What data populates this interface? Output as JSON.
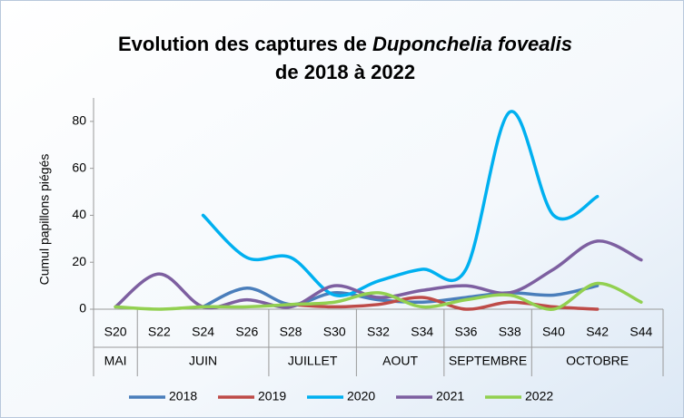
{
  "chart_data": {
    "type": "line",
    "title_parts": [
      "Evolution des captures de ",
      "Duponchelia  fovealis",
      "de 2018 à 2022"
    ],
    "y_label": "Cumul papillons piégés",
    "categories": [
      "S20",
      "S22",
      "S24",
      "S26",
      "S28",
      "S30",
      "S32",
      "S34",
      "S36",
      "S38",
      "S40",
      "S42",
      "S44"
    ],
    "month_categories": [
      "MAI",
      "JUIN",
      "JUIN",
      "JUIN",
      "JUILLET",
      "JUILLET",
      "AOUT",
      "AOUT",
      "SEPTEMBRE",
      "SEPTEMBRE",
      "OCTOBRE",
      "OCTOBRE",
      "OCTOBRE"
    ],
    "series": [
      {
        "name": "2018",
        "color": "#4a7ebb",
        "values": [
          null,
          null,
          1,
          9,
          2,
          7,
          4,
          3,
          5,
          7,
          6,
          10,
          null
        ]
      },
      {
        "name": "2019",
        "color": "#be4b48",
        "values": [
          null,
          null,
          null,
          null,
          2,
          1,
          2,
          5,
          0,
          3,
          1,
          0,
          null
        ]
      },
      {
        "name": "2020",
        "color": "#00b0f0",
        "values": [
          null,
          null,
          40,
          22,
          22,
          6,
          12,
          17,
          17,
          84,
          40,
          48,
          null
        ]
      },
      {
        "name": "2021",
        "color": "#7d5fa0",
        "values": [
          1,
          15,
          1,
          4,
          1,
          10,
          5,
          8,
          10,
          7,
          17,
          29,
          21
        ]
      },
      {
        "name": "2022",
        "color": "#92d050",
        "values": [
          1,
          0,
          1,
          1,
          2,
          3,
          7,
          1,
          4,
          6,
          0,
          11,
          3
        ]
      }
    ],
    "ylim": [
      0,
      90
    ],
    "yticks": [
      0,
      20,
      40,
      60,
      80
    ],
    "grid": false,
    "smooth": true,
    "legend": "bottom"
  }
}
